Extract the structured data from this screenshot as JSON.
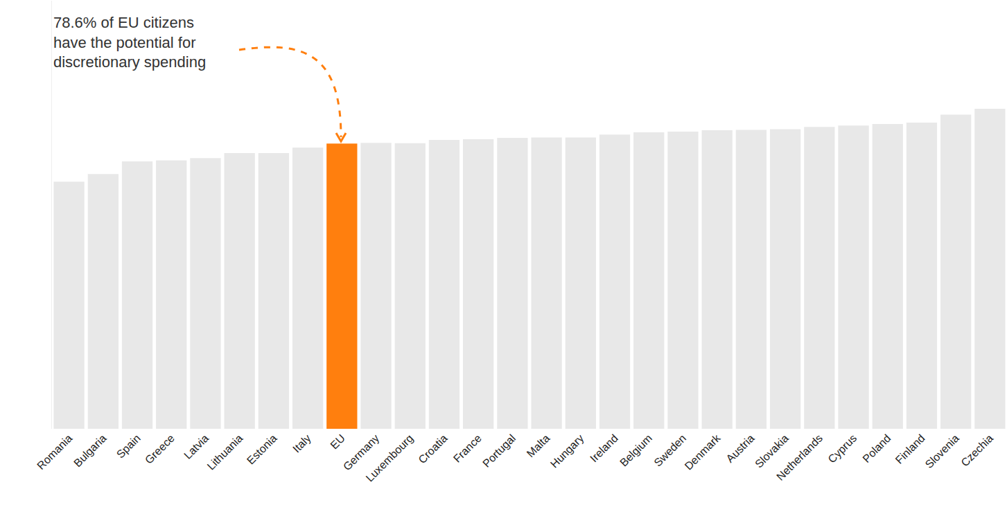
{
  "chart_data": {
    "type": "bar",
    "annotation": [
      "78.6% of EU citizens",
      "have the potential for",
      "discretionary spending"
    ],
    "categories": [
      "Romania",
      "Bulgaria",
      "Spain",
      "Greece",
      "Latvia",
      "Lithuania",
      "Estonia",
      "Italy",
      "EU",
      "Germany",
      "Luxembourg",
      "Croatia",
      "France",
      "Portugal",
      "Malta",
      "Hungary",
      "Ireland",
      "Belgium",
      "Sweden",
      "Denmark",
      "Austria",
      "Slovakia",
      "Netherlands",
      "Cyprus",
      "Poland",
      "Finland",
      "Slovenia",
      "Czechia"
    ],
    "values": [
      68.1,
      70.2,
      73.7,
      74.0,
      74.6,
      76.0,
      76.0,
      77.5,
      78.6,
      78.8,
      78.7,
      79.6,
      79.8,
      80.2,
      80.3,
      80.3,
      81.1,
      81.7,
      81.9,
      82.3,
      82.4,
      82.6,
      83.2,
      83.6,
      84.0,
      84.4,
      86.6,
      88.2
    ],
    "colors": [
      "#e8e8e8",
      "#e8e8e8",
      "#e8e8e8",
      "#e8e8e8",
      "#e8e8e8",
      "#e8e8e8",
      "#e8e8e8",
      "#e8e8e8",
      "#ff7f0e",
      "#e8e8e8",
      "#e8e8e8",
      "#e8e8e8",
      "#e8e8e8",
      "#e8e8e8",
      "#e8e8e8",
      "#e8e8e8",
      "#e8e8e8",
      "#e8e8e8",
      "#e8e8e8",
      "#e8e8e8",
      "#e8e8e8",
      "#e8e8e8",
      "#e8e8e8",
      "#e8e8e8",
      "#e8e8e8",
      "#e8e8e8",
      "#e8e8e8",
      "#e8e8e8"
    ],
    "ylim": [
      0,
      118
    ],
    "grid": false,
    "tick_labels": "x",
    "data_labels": false
  }
}
